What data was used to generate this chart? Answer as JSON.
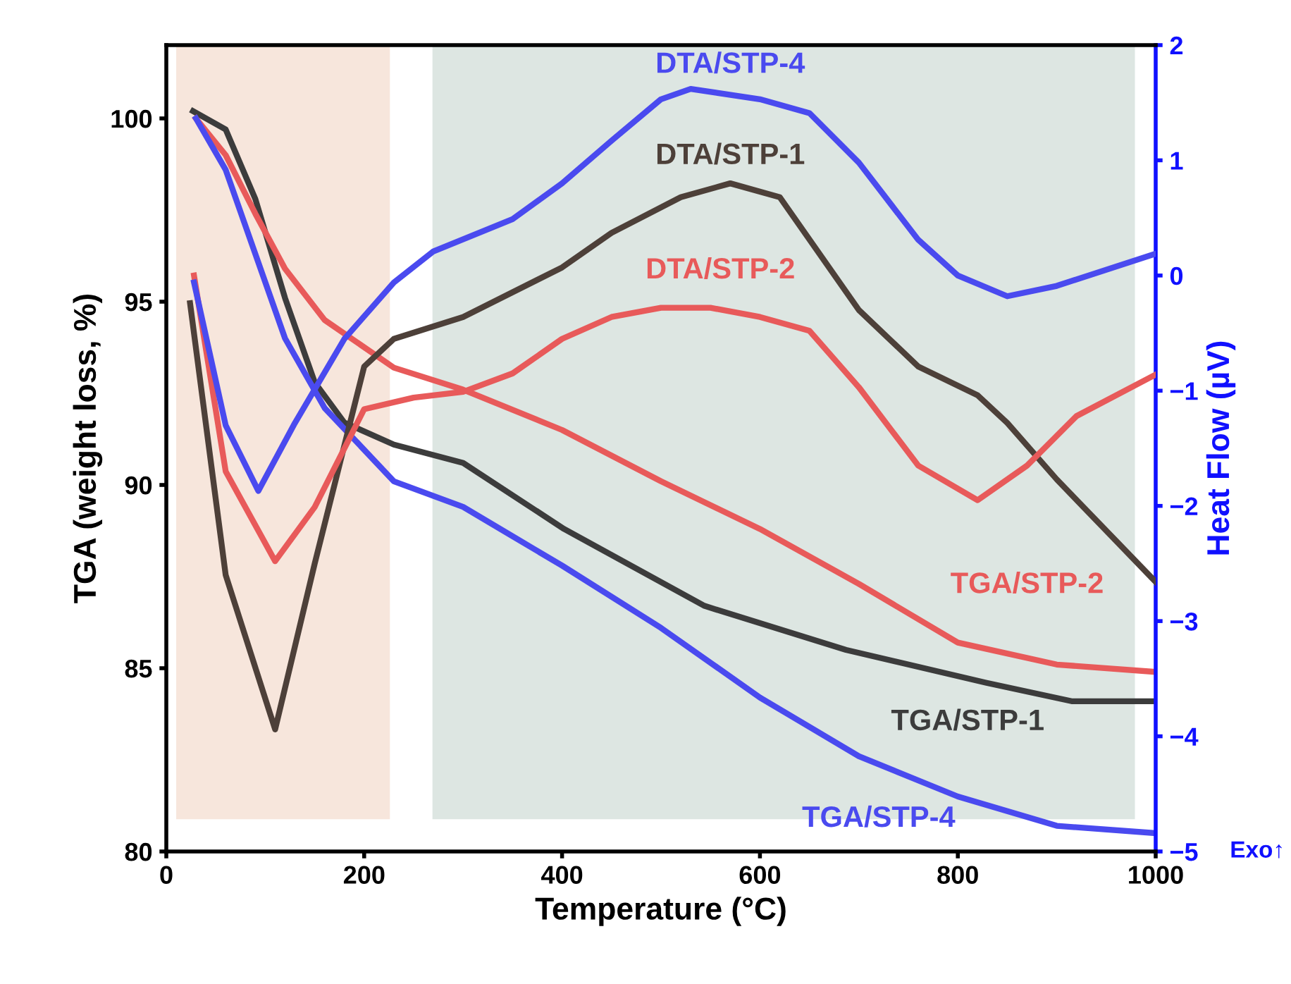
{
  "chart_data": {
    "type": "line",
    "xlabel": "Temperature (°C)",
    "ylabel": "TGA (weight loss, %)",
    "y2label": "Heat Flow (µV)",
    "xlim": [
      0,
      1000
    ],
    "xticks": [
      0,
      200,
      400,
      600,
      800,
      1000
    ],
    "ylim": [
      80,
      102
    ],
    "yticks": [
      80,
      85,
      90,
      95,
      100
    ],
    "y2lim": [
      -5,
      2
    ],
    "y2ticks": [
      -5,
      -4,
      -3,
      -2,
      -1,
      0,
      1,
      2
    ],
    "grid": false,
    "legend": false,
    "marker": "none",
    "line_style": "solid",
    "bands": [
      {
        "axis": "x",
        "from": 10,
        "to": 226,
        "color": "#f7e6dc"
      },
      {
        "axis": "x",
        "from": 269,
        "to": 979,
        "color": "#dde6e2"
      }
    ],
    "annotations": [
      "Exo↑"
    ],
    "series": [
      {
        "name": "TGA/STP-1",
        "color": "#3c3c3c",
        "x": [
          27,
          60,
          90,
          120,
          150,
          180,
          230,
          300,
          402,
          544,
          687,
          829,
          915,
          1000
        ],
        "values": [
          100.2,
          99.7,
          97.8,
          95.1,
          92.8,
          91.7,
          91.1,
          90.6,
          88.8,
          86.7,
          85.5,
          84.6,
          84.1,
          84.1
        ]
      },
      {
        "name": "TGA/STP-2",
        "color": "#e85a5a",
        "x": [
          30,
          60,
          90,
          120,
          160,
          230,
          300,
          400,
          500,
          600,
          700,
          800,
          900,
          1000
        ],
        "values": [
          100,
          99,
          97.4,
          95.9,
          94.5,
          93.2,
          92.6,
          91.5,
          90.1,
          88.8,
          87.3,
          85.7,
          85.1,
          84.9
        ]
      },
      {
        "name": "TGA/STP-4",
        "color": "#4a4aef",
        "x": [
          30,
          60,
          90,
          120,
          160,
          230,
          300,
          400,
          500,
          600,
          700,
          800,
          900,
          1000
        ],
        "values": [
          100,
          98.6,
          96.3,
          94,
          92.1,
          90.1,
          89.4,
          87.8,
          86.1,
          84.2,
          82.6,
          81.5,
          80.7,
          80.5
        ]
      },
      {
        "name": "DTA/STP-1",
        "color": "#4d4039",
        "axis": "y2",
        "x": [
          24,
          60,
          110,
          150,
          200,
          230,
          300,
          400,
          450,
          520,
          570,
          620,
          700,
          760,
          820,
          850,
          900,
          1000
        ],
        "values": [
          -0.24,
          -2.6,
          -3.94,
          -2.5,
          -0.79,
          -0.55,
          -0.36,
          0.07,
          0.37,
          0.68,
          0.8,
          0.68,
          -0.3,
          -0.79,
          -1.04,
          -1.28,
          -1.77,
          -2.66
        ]
      },
      {
        "name": "DTA/STP-2",
        "color": "#e85a5a",
        "axis": "y2",
        "x": [
          28,
          60,
          110,
          150,
          200,
          250,
          300,
          350,
          400,
          450,
          500,
          550,
          600,
          650,
          700,
          760,
          820,
          870,
          920,
          1000
        ],
        "values": [
          0.0,
          -1.7,
          -2.48,
          -2.01,
          -1.16,
          -1.06,
          -1.01,
          -0.85,
          -0.55,
          -0.36,
          -0.28,
          -0.28,
          -0.36,
          -0.48,
          -0.97,
          -1.65,
          -1.95,
          -1.65,
          -1.22,
          -0.86
        ]
      },
      {
        "name": "DTA/STP-4",
        "color": "#4a4aef",
        "axis": "y2",
        "x": [
          28,
          60,
          93,
          130,
          180,
          230,
          270,
          350,
          400,
          450,
          500,
          530,
          600,
          650,
          700,
          760,
          800,
          850,
          900,
          1000
        ],
        "values": [
          -0.06,
          -1.3,
          -1.87,
          -1.28,
          -0.55,
          -0.06,
          0.21,
          0.49,
          0.8,
          1.17,
          1.53,
          1.62,
          1.53,
          1.41,
          0.98,
          0.31,
          0.0,
          -0.18,
          -0.09,
          0.19
        ]
      }
    ]
  }
}
